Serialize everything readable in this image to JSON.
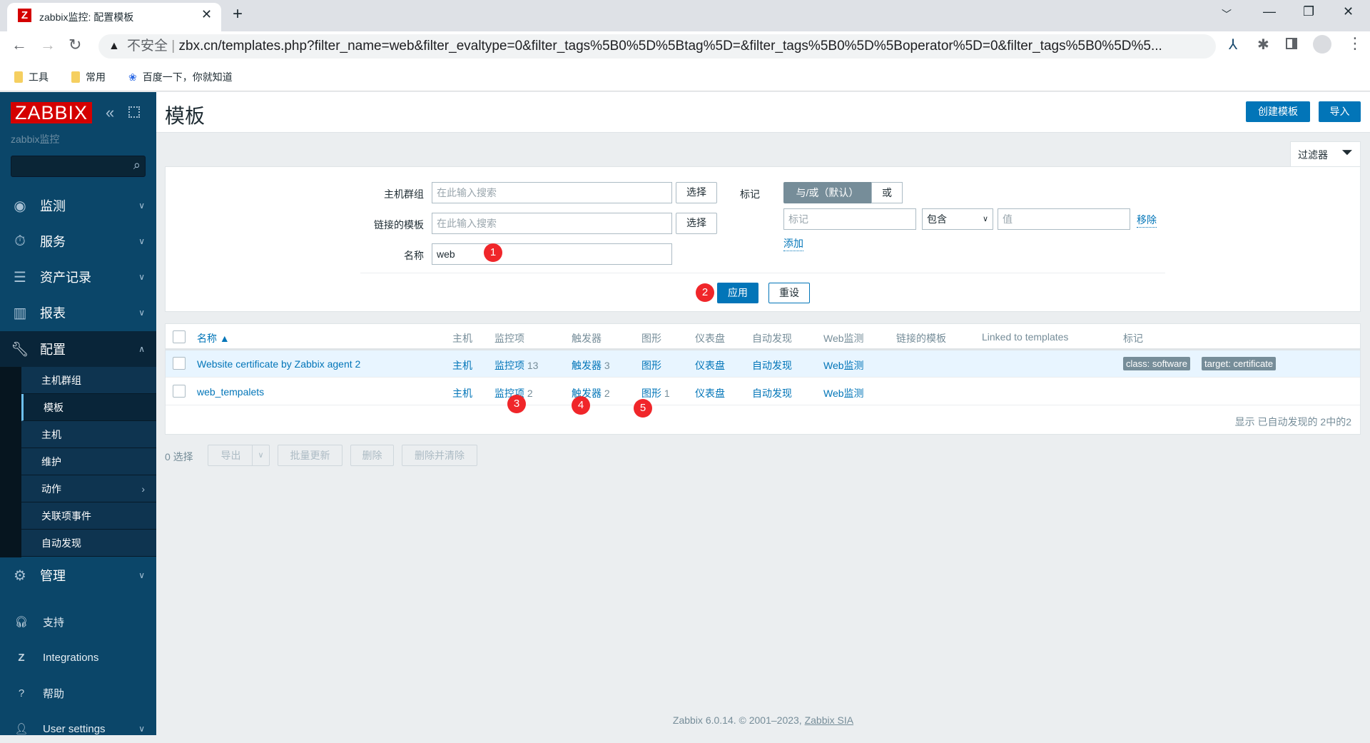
{
  "browser": {
    "tab_title": "zabbix监控: 配置模板",
    "security": "不安全",
    "url": "zbx.cn/templates.php?filter_name=web&filter_evaltype=0&filter_tags%5B0%5D%5Btag%5D=&filter_tags%5B0%5D%5Boperator%5D=0&filter_tags%5B0%5D%5...",
    "bookmarks": [
      "工具",
      "常用",
      "百度一下，你就知道"
    ]
  },
  "sidebar": {
    "logo": "ZABBIX",
    "subtitle": "zabbix监控",
    "menu": [
      {
        "label": "监测",
        "icon": "eye-icon"
      },
      {
        "label": "服务",
        "icon": "stopwatch-icon"
      },
      {
        "label": "资产记录",
        "icon": "list-icon"
      },
      {
        "label": "报表",
        "icon": "chart-icon"
      },
      {
        "label": "配置",
        "icon": "wrench-icon"
      }
    ],
    "submenu": [
      "主机群组",
      "模板",
      "主机",
      "维护",
      "动作",
      "关联项事件",
      "自动发现"
    ],
    "admin": "管理",
    "bottom": [
      "支持",
      "Integrations",
      "帮助",
      "User settings"
    ]
  },
  "header": {
    "title": "模板",
    "create": "创建模板",
    "import": "导入"
  },
  "filter": {
    "tab": "过滤器",
    "host_groups_label": "主机群组",
    "linked_label": "链接的模板",
    "name_label": "名称",
    "placeholder": "在此输入搜索",
    "name_value": "web",
    "select": "选择",
    "tags_label": "标记",
    "andor": "与/或（默认）",
    "or": "或",
    "tag_placeholder": "标记",
    "operator": "包含",
    "value_placeholder": "值",
    "remove": "移除",
    "add": "添加",
    "apply": "应用",
    "reset": "重设"
  },
  "table": {
    "headers": [
      "名称 ▲",
      "主机",
      "监控项",
      "触发器",
      "图形",
      "仪表盘",
      "自动发现",
      "Web监测",
      "链接的模板",
      "Linked to templates",
      "标记"
    ],
    "rows": [
      {
        "name": "Website certificate by Zabbix agent 2",
        "hosts": "主机",
        "items": "监控项",
        "items_count": "13",
        "triggers": "触发器",
        "triggers_count": "3",
        "graphs": "图形",
        "graphs_count": "",
        "dashboards": "仪表盘",
        "discovery": "自动发现",
        "web": "Web监测",
        "tags": [
          "class: software",
          "target: certificate"
        ]
      },
      {
        "name": "web_tempalets",
        "hosts": "主机",
        "items": "监控项",
        "items_count": "2",
        "triggers": "触发器",
        "triggers_count": "2",
        "graphs": "图形",
        "graphs_count": "1",
        "dashboards": "仪表盘",
        "discovery": "自动发现",
        "web": "Web监测",
        "tags": []
      }
    ],
    "summary": "显示 已自动发现的 2中的2"
  },
  "actions": {
    "selected": "0 选择",
    "export": "导出",
    "mass_update": "批量更新",
    "delete": "删除",
    "delete_clear": "删除并清除"
  },
  "annotations": [
    "1",
    "2",
    "3",
    "4",
    "5"
  ],
  "footer": {
    "text": "Zabbix 6.0.14. © 2001–2023, ",
    "link": "Zabbix SIA"
  }
}
